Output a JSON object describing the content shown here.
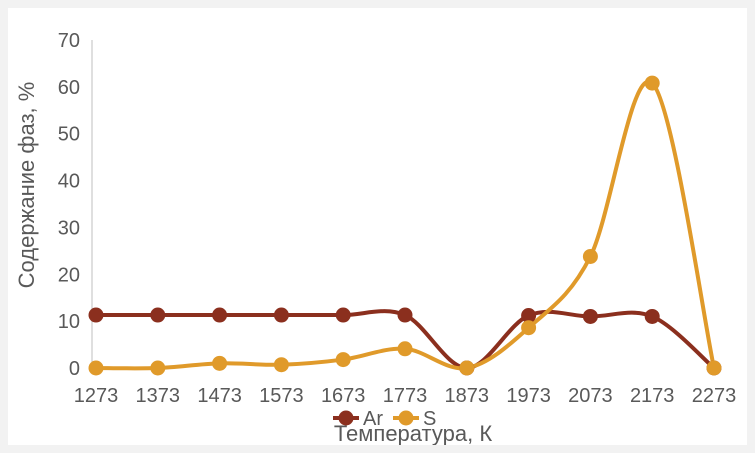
{
  "chart_data": {
    "type": "line",
    "smooth": true,
    "title": "",
    "xlabel": "Температура, К",
    "ylabel": "Содержание фаз, %",
    "categories": [
      "1273",
      "1373",
      "1473",
      "1573",
      "1673",
      "1773",
      "1873",
      "1973",
      "2073",
      "2173",
      "2273"
    ],
    "ylim": [
      0,
      70
    ],
    "yticks": [
      0,
      10,
      20,
      30,
      40,
      50,
      60,
      70
    ],
    "grid": false,
    "legend_position": "bottom",
    "series": [
      {
        "name": "Ar",
        "color": "#8b2f1e",
        "values": [
          11.3,
          11.3,
          11.3,
          11.3,
          11.3,
          11.3,
          0,
          11.2,
          11.0,
          11.0,
          0
        ]
      },
      {
        "name": "S",
        "color": "#e09a2a",
        "values": [
          0,
          0,
          1.0,
          0.7,
          1.8,
          4.1,
          0,
          8.6,
          23.8,
          60.8,
          0
        ]
      }
    ]
  }
}
